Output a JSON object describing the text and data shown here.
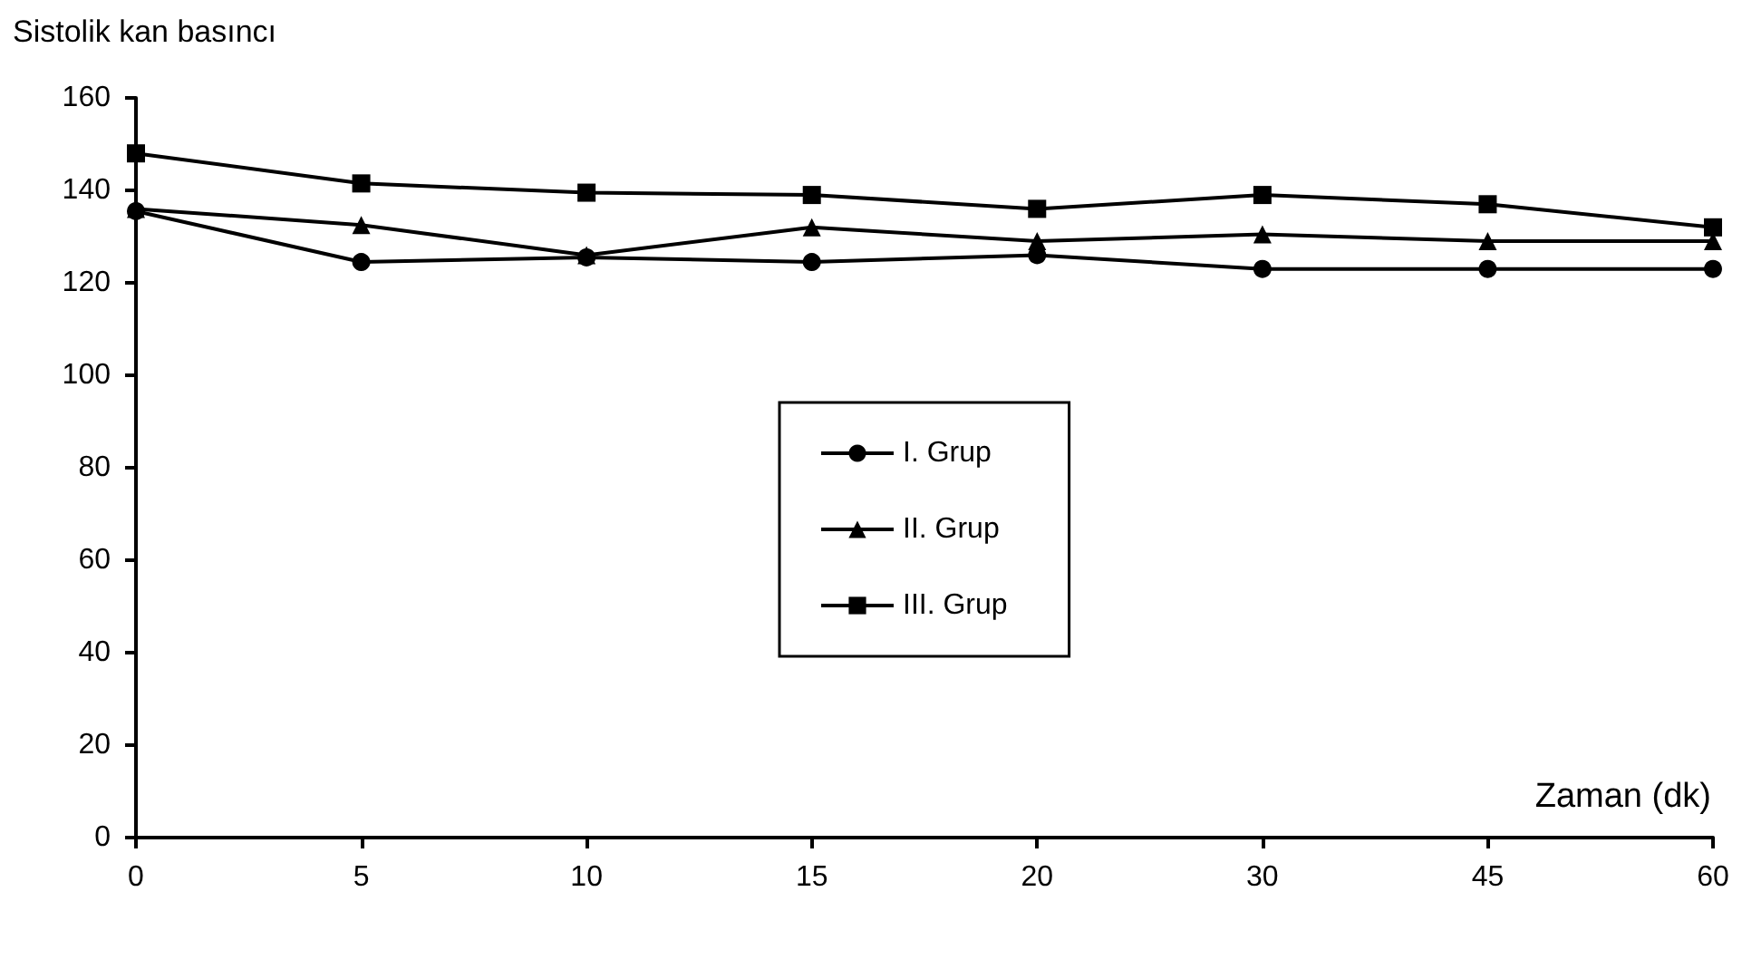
{
  "chart_data": {
    "type": "line",
    "ylabel": "Sistolik kan basıncı",
    "xlabel": "Zaman (dk)",
    "categories": [
      "0",
      "5",
      "10",
      "15",
      "20",
      "30",
      "45",
      "60"
    ],
    "ylim": [
      0,
      160
    ],
    "yticks": [
      0,
      20,
      40,
      60,
      80,
      100,
      120,
      140,
      160
    ],
    "grid": false,
    "legend": "center",
    "line_style": "solid",
    "series": [
      {
        "name": "I. Grup",
        "color": "#000000",
        "marker": "circle",
        "values": [
          135.5,
          124.5,
          125.5,
          124.5,
          126,
          123,
          123,
          123
        ]
      },
      {
        "name": "II. Grup",
        "color": "#000000",
        "marker": "triangle",
        "values": [
          136,
          132.5,
          126,
          132,
          129,
          130.5,
          129,
          129
        ]
      },
      {
        "name": "III. Grup",
        "color": "#000000",
        "marker": "square",
        "values": [
          148,
          141.5,
          139.5,
          139,
          136,
          139,
          137,
          132
        ]
      }
    ]
  }
}
